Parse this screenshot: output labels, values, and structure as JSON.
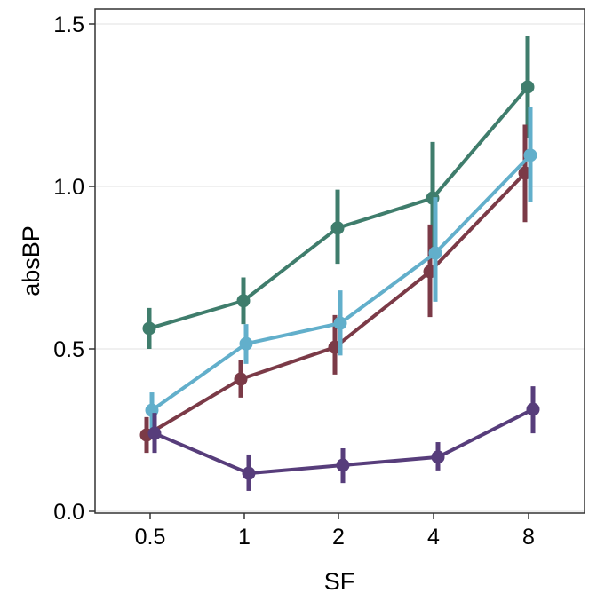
{
  "chart_data": {
    "type": "line",
    "xlabel": "SF",
    "ylabel": "absBP",
    "categories": [
      "0.5",
      "1",
      "2",
      "4",
      "8"
    ],
    "ylim": [
      0,
      1.5
    ],
    "yticks": [
      "0.0",
      "0.5",
      "1.0",
      "1.5"
    ],
    "grid": true,
    "legend": "none",
    "error_bars": true,
    "series": [
      {
        "color": "#3f7d6c",
        "values": [
          0.563,
          0.648,
          0.872,
          0.964,
          1.306
        ],
        "lower": [
          0.5,
          0.576,
          0.762,
          0.79,
          1.15
        ],
        "upper": [
          0.626,
          0.72,
          0.99,
          1.137,
          1.464
        ]
      },
      {
        "color": "#7b3a47",
        "values": [
          0.235,
          0.407,
          0.505,
          0.738,
          1.041
        ],
        "lower": [
          0.18,
          0.35,
          0.421,
          0.598,
          0.89
        ],
        "upper": [
          0.29,
          0.467,
          0.604,
          0.883,
          1.19
        ]
      },
      {
        "color": "#62afcb",
        "values": [
          0.311,
          0.516,
          0.579,
          0.795,
          1.096
        ],
        "lower": [
          0.254,
          0.454,
          0.48,
          0.645,
          0.951
        ],
        "upper": [
          0.366,
          0.576,
          0.68,
          0.967,
          1.246
        ]
      },
      {
        "color": "#573d7b",
        "values": [
          0.24,
          0.117,
          0.142,
          0.167,
          0.314
        ],
        "lower": [
          0.18,
          0.063,
          0.087,
          0.126,
          0.24
        ],
        "upper": [
          0.303,
          0.175,
          0.194,
          0.213,
          0.385
        ]
      }
    ]
  }
}
